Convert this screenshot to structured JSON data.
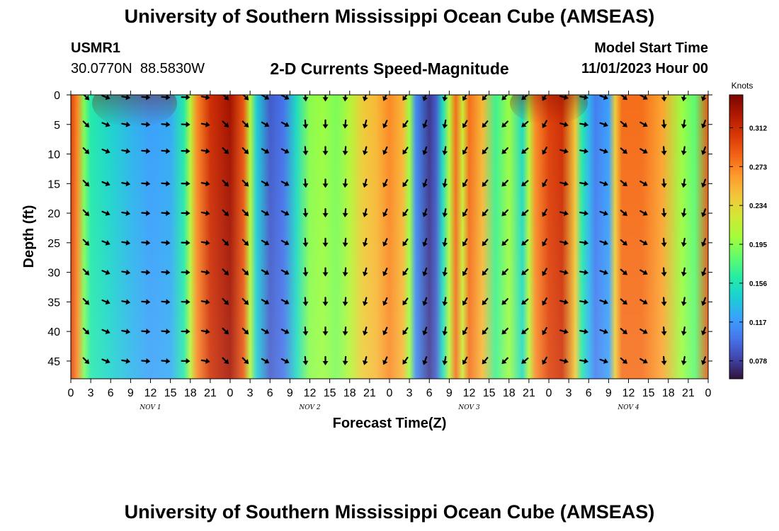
{
  "header": {
    "title": "University of Southern Mississippi Ocean Cube (AMSEAS)",
    "station": "USMR1",
    "coordinates": "30.0770N  88.5830W",
    "product": "2-D Currents Speed-Magnitude",
    "model_start_label": "Model Start Time",
    "model_start_value": "11/01/2023 Hour 00"
  },
  "footer": {
    "title": "University of Southern Mississippi Ocean Cube (AMSEAS)"
  },
  "chart_data": {
    "type": "heatmap",
    "title": "2-D Currents Speed-Magnitude",
    "xlabel": "Forecast Time(Z)",
    "ylabel": "Depth (ft)",
    "x_ticks": [
      "0",
      "3",
      "6",
      "9",
      "12",
      "15",
      "18",
      "21",
      "0",
      "3",
      "6",
      "9",
      "12",
      "15",
      "18",
      "21",
      "0",
      "3",
      "6",
      "9",
      "12",
      "15",
      "18",
      "21",
      "0",
      "3",
      "6",
      "9",
      "12",
      "15",
      "18",
      "21",
      "0"
    ],
    "x_range_hours": [
      0,
      96
    ],
    "day_labels": [
      {
        "hour": 12,
        "label": "NOV 1"
      },
      {
        "hour": 36,
        "label": "NOV 2"
      },
      {
        "hour": 60,
        "label": "NOV 3"
      },
      {
        "hour": 84,
        "label": "NOV 4"
      }
    ],
    "y_ticks": [
      0,
      5,
      10,
      15,
      20,
      25,
      30,
      35,
      40,
      45
    ],
    "y_range_ft": [
      0,
      48
    ],
    "colorbar": {
      "unit": "Knots",
      "min": 0.06,
      "max": 0.345,
      "ticks": [
        0.078,
        0.117,
        0.156,
        0.195,
        0.234,
        0.273,
        0.312
      ],
      "tick_labels": [
        "0.078",
        "0.117",
        "0.156",
        "0.195",
        "0.234",
        "0.273",
        "0.312"
      ]
    },
    "speed_profile": [
      {
        "hour": 0,
        "speed": 0.3
      },
      {
        "hour": 1,
        "speed": 0.27
      },
      {
        "hour": 2,
        "speed": 0.19
      },
      {
        "hour": 3,
        "speed": 0.16
      },
      {
        "hour": 6,
        "speed": 0.145
      },
      {
        "hour": 9,
        "speed": 0.13
      },
      {
        "hour": 12,
        "speed": 0.12
      },
      {
        "hour": 15,
        "speed": 0.125
      },
      {
        "hour": 17,
        "speed": 0.16
      },
      {
        "hour": 18,
        "speed": 0.21
      },
      {
        "hour": 19,
        "speed": 0.27
      },
      {
        "hour": 21,
        "speed": 0.31
      },
      {
        "hour": 24,
        "speed": 0.33
      },
      {
        "hour": 26,
        "speed": 0.29
      },
      {
        "hour": 27,
        "speed": 0.21
      },
      {
        "hour": 28,
        "speed": 0.14
      },
      {
        "hour": 30,
        "speed": 0.09
      },
      {
        "hour": 32,
        "speed": 0.1
      },
      {
        "hour": 34,
        "speed": 0.15
      },
      {
        "hour": 36,
        "speed": 0.195
      },
      {
        "hour": 38,
        "speed": 0.2
      },
      {
        "hour": 40,
        "speed": 0.19
      },
      {
        "hour": 42,
        "speed": 0.21
      },
      {
        "hour": 44,
        "speed": 0.24
      },
      {
        "hour": 46,
        "speed": 0.25
      },
      {
        "hour": 48,
        "speed": 0.27
      },
      {
        "hour": 50,
        "speed": 0.25
      },
      {
        "hour": 51,
        "speed": 0.2
      },
      {
        "hour": 52,
        "speed": 0.11
      },
      {
        "hour": 54,
        "speed": 0.075
      },
      {
        "hour": 55,
        "speed": 0.09
      },
      {
        "hour": 56,
        "speed": 0.15
      },
      {
        "hour": 57,
        "speed": 0.21
      },
      {
        "hour": 58,
        "speed": 0.28
      },
      {
        "hour": 59,
        "speed": 0.22
      },
      {
        "hour": 60,
        "speed": 0.28
      },
      {
        "hour": 62,
        "speed": 0.25
      },
      {
        "hour": 64,
        "speed": 0.17
      },
      {
        "hour": 66,
        "speed": 0.2
      },
      {
        "hour": 68,
        "speed": 0.15
      },
      {
        "hour": 69,
        "speed": 0.21
      },
      {
        "hour": 70,
        "speed": 0.27
      },
      {
        "hour": 72,
        "speed": 0.3
      },
      {
        "hour": 74,
        "speed": 0.31
      },
      {
        "hour": 76,
        "speed": 0.24
      },
      {
        "hour": 77,
        "speed": 0.16
      },
      {
        "hour": 78,
        "speed": 0.13
      },
      {
        "hour": 79,
        "speed": 0.105
      },
      {
        "hour": 81,
        "speed": 0.12
      },
      {
        "hour": 82,
        "speed": 0.24
      },
      {
        "hour": 83,
        "speed": 0.28
      },
      {
        "hour": 86,
        "speed": 0.28
      },
      {
        "hour": 89,
        "speed": 0.26
      },
      {
        "hour": 92,
        "speed": 0.2
      },
      {
        "hour": 94,
        "speed": 0.18
      },
      {
        "hour": 96,
        "speed": 0.29
      }
    ],
    "vector_rows_ft": [
      0.4,
      5,
      9.5,
      15,
      20,
      25,
      30,
      35,
      40,
      45
    ],
    "vector_directions_deg": [
      {
        "hour": 0,
        "dir": 135
      },
      {
        "hour": 3,
        "dir": 112
      },
      {
        "hour": 6,
        "dir": 100
      },
      {
        "hour": 9,
        "dir": 95
      },
      {
        "hour": 12,
        "dir": 95
      },
      {
        "hour": 15,
        "dir": 92
      },
      {
        "hour": 18,
        "dir": 100
      },
      {
        "hour": 21,
        "dir": 135
      },
      {
        "hour": 24,
        "dir": 135
      },
      {
        "hour": 27,
        "dir": 120
      },
      {
        "hour": 30,
        "dir": 118
      },
      {
        "hour": 33,
        "dir": 175
      },
      {
        "hour": 36,
        "dir": 180
      },
      {
        "hour": 39,
        "dir": 185
      },
      {
        "hour": 42,
        "dir": 195
      },
      {
        "hour": 45,
        "dir": 205
      },
      {
        "hour": 48,
        "dir": 215
      },
      {
        "hour": 51,
        "dir": 200
      },
      {
        "hour": 54,
        "dir": 190
      },
      {
        "hour": 57,
        "dir": 210
      },
      {
        "hour": 60,
        "dir": 220
      },
      {
        "hour": 63,
        "dir": 225
      },
      {
        "hour": 66,
        "dir": 230
      },
      {
        "hour": 69,
        "dir": 210
      },
      {
        "hour": 72,
        "dir": 105
      },
      {
        "hour": 75,
        "dir": 100
      },
      {
        "hour": 78,
        "dir": 110
      },
      {
        "hour": 81,
        "dir": 130
      },
      {
        "hour": 84,
        "dir": 120
      },
      {
        "hour": 87,
        "dir": 175
      },
      {
        "hour": 90,
        "dir": 190
      },
      {
        "hour": 93,
        "dir": 200
      },
      {
        "hour": 96,
        "dir": 110
      }
    ]
  },
  "colors": {
    "colormap": [
      "#30123b",
      "#4145ab",
      "#4675ed",
      "#39a2fc",
      "#1bcfd4",
      "#24eca6",
      "#61fc6c",
      "#a4fc3b",
      "#d1e834",
      "#f3c63a",
      "#fe9b2d",
      "#f36315",
      "#d93806",
      "#b11901",
      "#7a0402"
    ],
    "arrow": "#000000",
    "frame": "#000000"
  }
}
